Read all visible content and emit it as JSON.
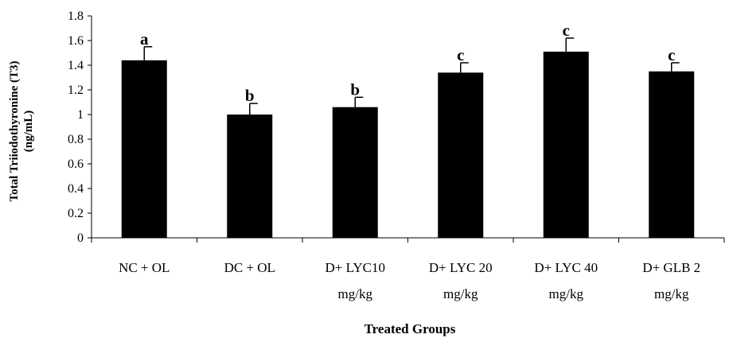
{
  "chart_data": {
    "type": "bar",
    "title": "",
    "xlabel": "Treated Groups",
    "ylabel_lines": [
      "Total Triiodothyronine (T3)",
      "(ng/mL)"
    ],
    "ylim": [
      0,
      1.8
    ],
    "yticks": [
      "0",
      "0.2",
      "0.4",
      "0.6",
      "0.8",
      "1",
      "1.2",
      "1.4",
      "1.6",
      "1.8"
    ],
    "grid": false,
    "legend": "none",
    "bar_color": "#000000",
    "categories": [
      [
        "NC + OL",
        ""
      ],
      [
        "DC + OL",
        ""
      ],
      [
        "D+ LYC10",
        "mg/kg"
      ],
      [
        "D+ LYC 20",
        "mg/kg"
      ],
      [
        "D+ LYC 40",
        "mg/kg"
      ],
      [
        "D+ GLB 2",
        "mg/kg"
      ]
    ],
    "values": [
      1.44,
      1.0,
      1.06,
      1.34,
      1.51,
      1.35
    ],
    "errors": [
      0.11,
      0.09,
      0.08,
      0.08,
      0.11,
      0.07
    ],
    "significance_labels": [
      "a",
      "b",
      "b",
      "c",
      "c",
      "c"
    ]
  }
}
